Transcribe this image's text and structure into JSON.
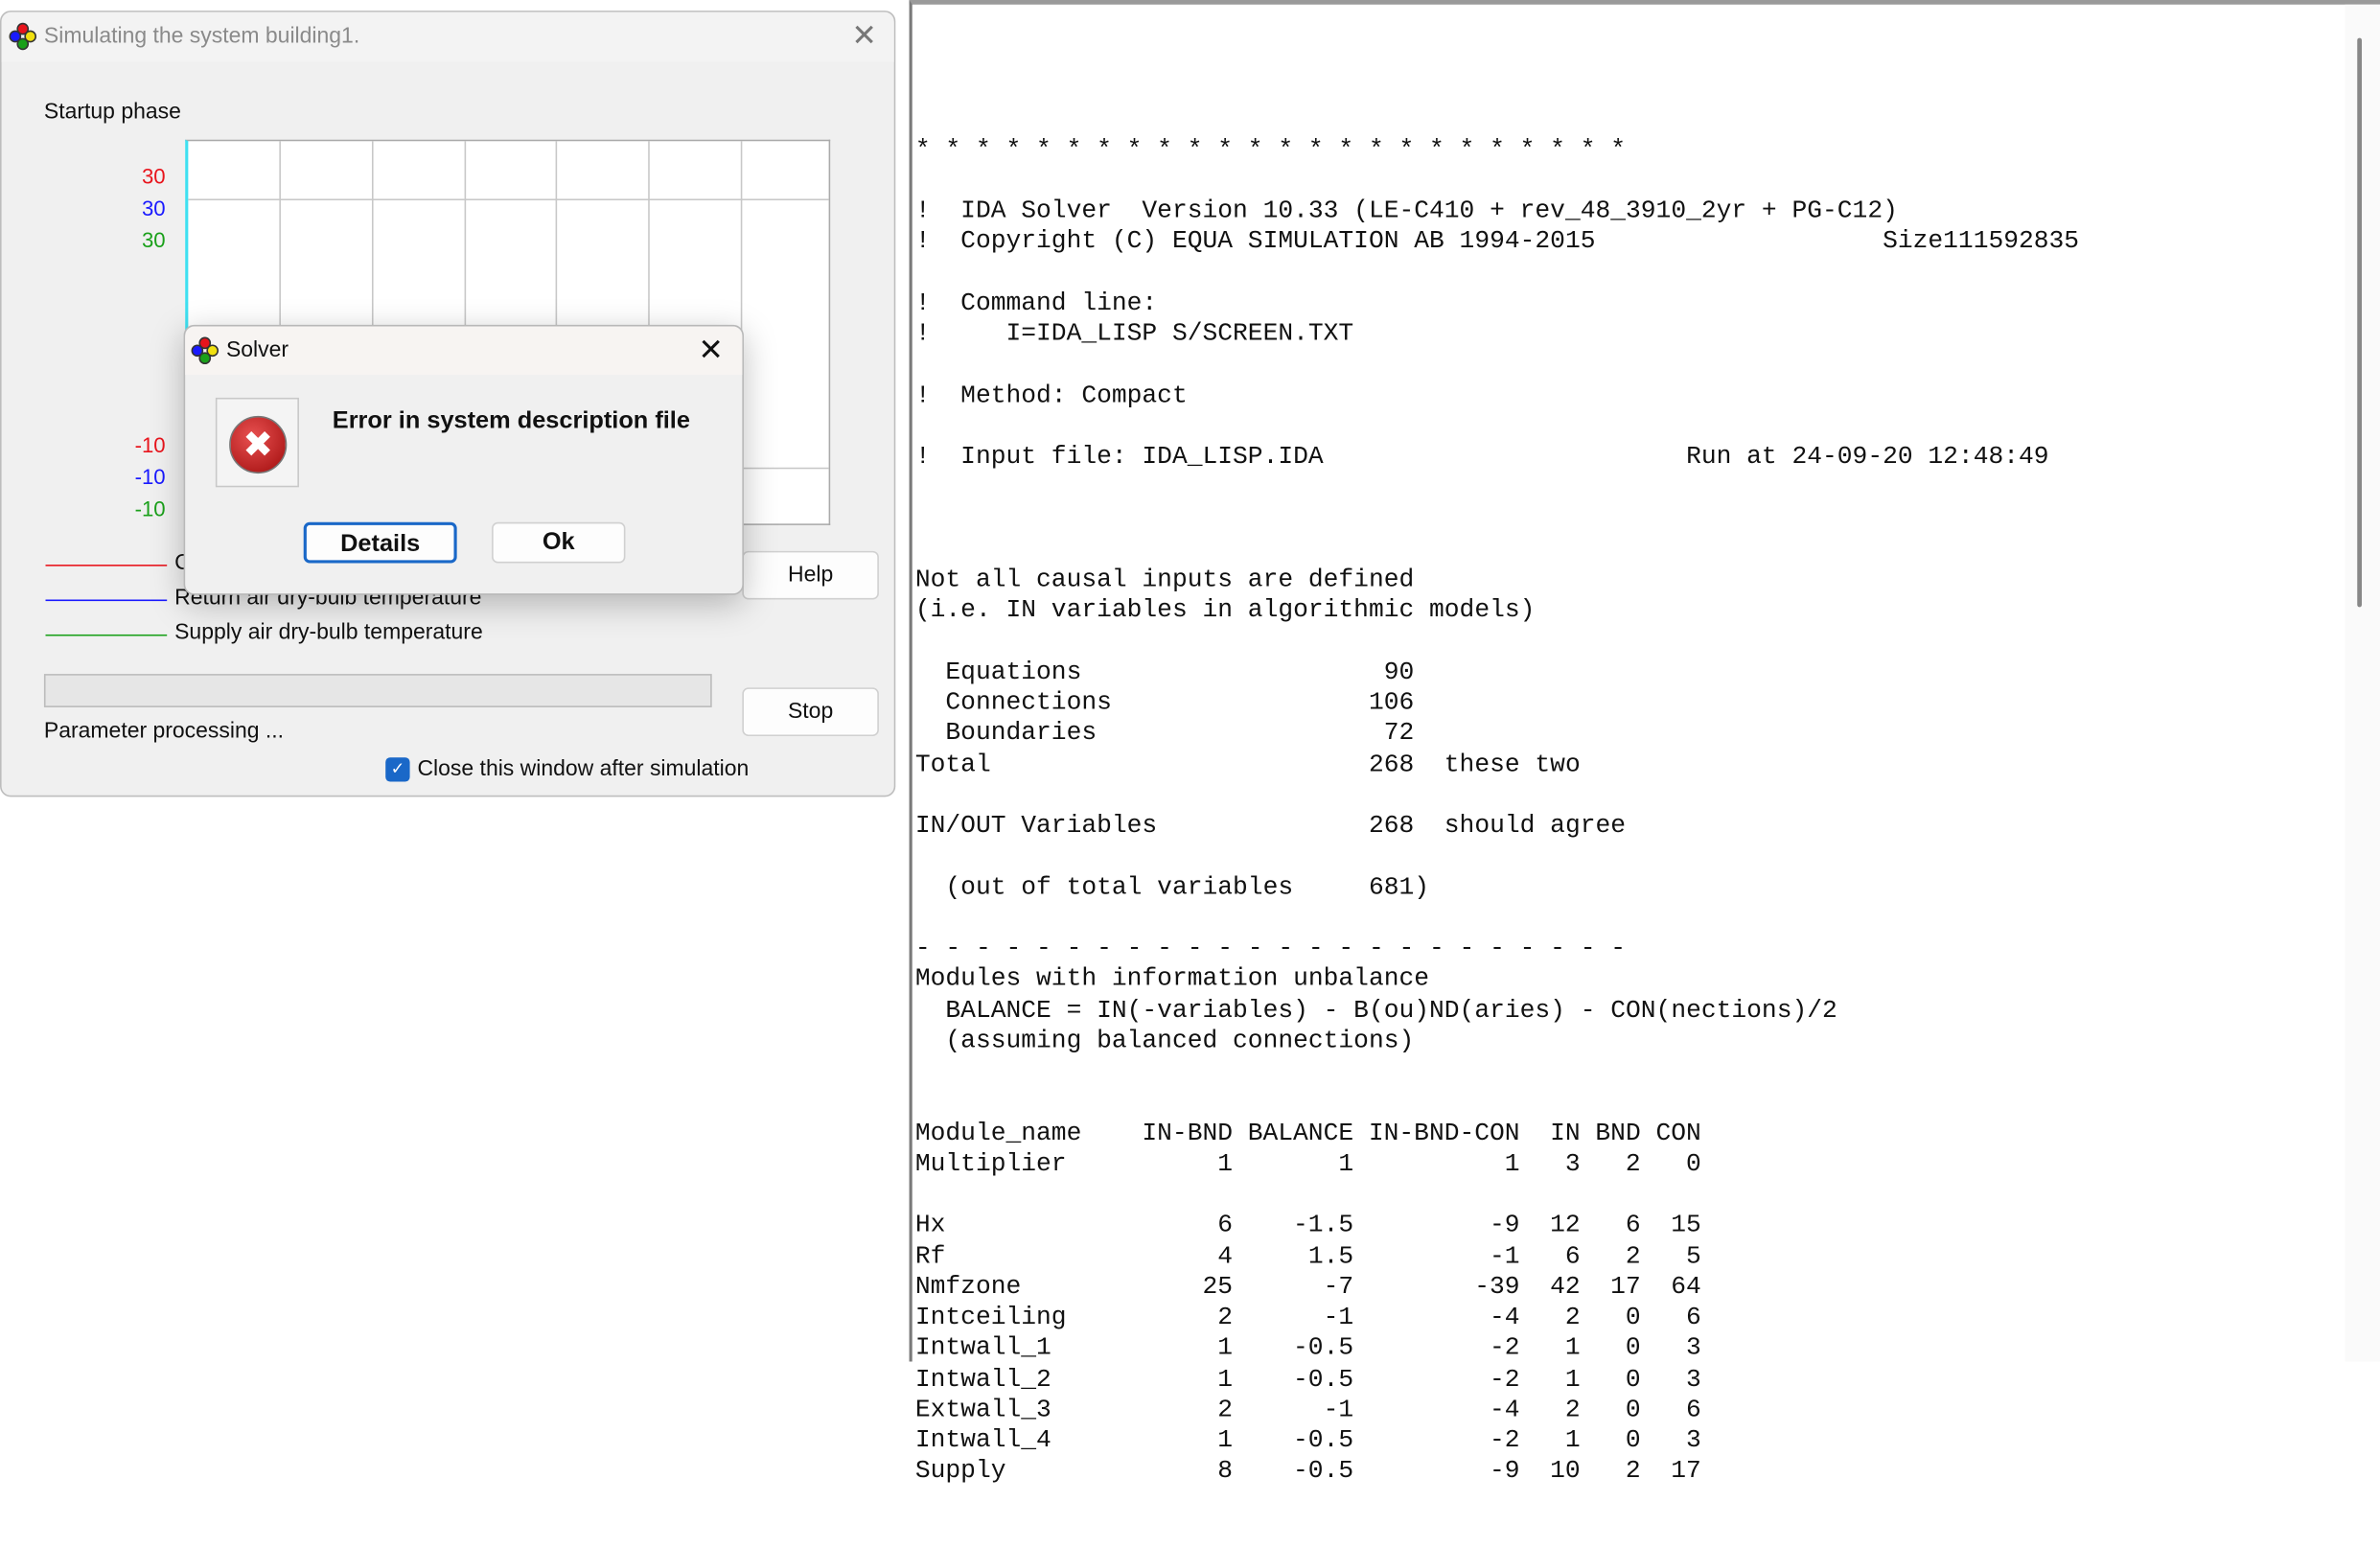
{
  "sim_window": {
    "title": "Simulating the system building1.",
    "phase_label": "Startup phase",
    "y_max_labels": [
      {
        "text": "30",
        "color": "#e8141c"
      },
      {
        "text": "30",
        "color": "#1a1aff"
      },
      {
        "text": "30",
        "color": "#1aa01a"
      }
    ],
    "y_min_labels": [
      {
        "text": "-10",
        "color": "#e8141c"
      },
      {
        "text": "-10",
        "color": "#1a1aff"
      },
      {
        "text": "-10",
        "color": "#1aa01a"
      }
    ],
    "legend": [
      {
        "label": "C",
        "color": "#e8141c"
      },
      {
        "label": "Return air dry-bulb temperature",
        "color": "#1a1aff"
      },
      {
        "label": "Supply air dry-bulb temperature",
        "color": "#1aa01a"
      }
    ],
    "help_label": "Help",
    "stop_label": "Stop",
    "progress": 0,
    "status_text": "Parameter processing ...",
    "close_after_label": "Close this window after simulation",
    "close_after_checked": true
  },
  "dialog": {
    "title": "Solver",
    "message": "Error in system description file",
    "details_label": "Details",
    "ok_label": "Ok",
    "icon": "error-icon"
  },
  "log": {
    "lines_top": [
      "* * * * * * * * * * * * * * * * * * * * * * * *",
      "",
      "!  IDA Solver  Version 10.33 (LE-C410 + rev_48_3910_2yr + PG-C12)",
      "!  Copyright (C) EQUA SIMULATION AB 1994-2015                   Size111592835",
      "",
      "!  Command line:",
      "!     I=IDA_LISP S/SCREEN.TXT",
      "",
      "!  Method: Compact",
      "",
      "!  Input file: IDA_LISP.IDA                        Run at 24-09-20 12:48:49",
      "",
      "",
      "",
      "Not all causal inputs are defined",
      "(i.e. IN variables in algorithmic models)",
      "",
      "  Equations                    90",
      "  Connections                 106",
      "  Boundaries                   72",
      "Total                         268  these two",
      "",
      "IN/OUT Variables              268  should agree",
      "",
      "  (out of total variables     681)",
      "",
      "- - - - - - - - - - - - - - - - - - - - - - - -",
      "Modules with information unbalance",
      "  BALANCE = IN(-variables) - B(ou)ND(aries) - CON(nections)/2",
      "  (assuming balanced connections)"
    ],
    "module_table": {
      "headers": [
        "Module_name",
        "IN-BND",
        "BALANCE",
        "IN-BND-CON",
        "IN",
        "BND",
        "CON"
      ],
      "rows": [
        [
          "Multiplier",
          "1",
          "1",
          "1",
          "3",
          "2",
          "0"
        ],
        [
          "",
          "",
          "",
          "",
          "",
          "",
          ""
        ],
        [
          "Hx",
          "6",
          "-1.5",
          "-9",
          "12",
          "6",
          "15"
        ],
        [
          "Rf",
          "4",
          "1.5",
          "-1",
          "6",
          "2",
          "5"
        ],
        [
          "Nmfzone",
          "25",
          "-7",
          "-39",
          "42",
          "17",
          "64"
        ],
        [
          "Intceiling",
          "2",
          "-1",
          "-4",
          "2",
          "0",
          "6"
        ],
        [
          "Intwall_1",
          "1",
          "-0.5",
          "-2",
          "1",
          "0",
          "3"
        ],
        [
          "Intwall_2",
          "1",
          "-0.5",
          "-2",
          "1",
          "0",
          "3"
        ],
        [
          "Extwall_3",
          "2",
          "-1",
          "-4",
          "2",
          "0",
          "6"
        ],
        [
          "Intwall_4",
          "1",
          "-0.5",
          "-2",
          "1",
          "0",
          "3"
        ],
        [
          "Supply",
          "8",
          "-0.5",
          "-9",
          "10",
          "2",
          "17"
        ]
      ]
    }
  }
}
